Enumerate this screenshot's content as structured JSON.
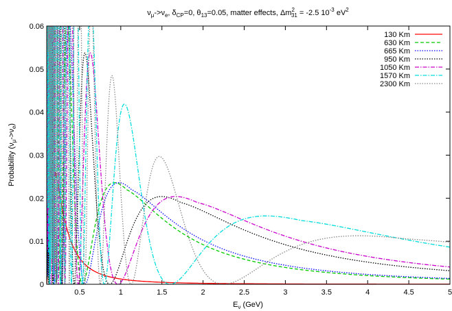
{
  "chart_data": {
    "type": "line",
    "title": {
      "prefix": "ν",
      "sub1": "μ",
      "arrow": "->ν",
      "sub2": "e",
      "p1": ", δ",
      "sub3": "CP",
      "p2": "=0, θ",
      "sub4": "13",
      "p3": "=0.05, matter effects, Δm",
      "sup1": "2",
      "sub5": "31",
      "p4": " = -2.5 10",
      "sup2": "-3",
      "p5": " eV",
      "sup3": "2"
    },
    "xlabel": {
      "main": "E",
      "sub": "ν",
      "unit": " (GeV)"
    },
    "ylabel": {
      "main": "Probability (ν",
      "sub1": "μ",
      "mid": "->ν",
      "sub2": "e",
      "end": ")"
    },
    "xlim": [
      0.1,
      5
    ],
    "ylim": [
      0,
      0.06
    ],
    "x_ticks": [
      "0.5",
      "1",
      "1.5",
      "2",
      "2.5",
      "3",
      "3.5",
      "4",
      "4.5",
      "5"
    ],
    "y_ticks": [
      "0",
      "0.01",
      "0.02",
      "0.03",
      "0.04",
      "0.05",
      "0.06"
    ],
    "grid": false,
    "legend_position": "top-right",
    "series": [
      {
        "name": "130 Km",
        "color": "#ff0000",
        "dash": "solid",
        "baseline_km": 130,
        "first_max_gev": 0.2,
        "points": [
          [
            0.2,
            0.0265
          ],
          [
            0.5,
            0.008
          ],
          [
            1.0,
            0.002
          ],
          [
            2.0,
            0.0005
          ],
          [
            5.0,
            0.0001
          ]
        ]
      },
      {
        "name": "630 Km",
        "color": "#00cc00",
        "dash": "dashed",
        "baseline_km": 630,
        "first_max_gev": 1.07,
        "points": [
          [
            0.55,
            0.0
          ],
          [
            1.07,
            0.022
          ],
          [
            2.0,
            0.014
          ],
          [
            3.0,
            0.008
          ],
          [
            4.0,
            0.005
          ],
          [
            5.0,
            0.0003
          ]
        ]
      },
      {
        "name": "665 Km",
        "color": "#0000ff",
        "dash": "dotted",
        "baseline_km": 665,
        "first_max_gev": 1.13,
        "points": [
          [
            0.58,
            0.0
          ],
          [
            1.13,
            0.022
          ],
          [
            2.0,
            0.0155
          ],
          [
            3.0,
            0.01
          ],
          [
            4.0,
            0.007
          ],
          [
            5.0,
            0.0055
          ]
        ]
      },
      {
        "name": "950 Km",
        "color": "#000000",
        "dash": "dotted",
        "baseline_km": 950,
        "first_max_gev": 1.73,
        "points": [
          [
            0.57,
            0.037
          ],
          [
            0.85,
            0.0
          ],
          [
            1.73,
            0.019
          ],
          [
            3.0,
            0.012
          ],
          [
            4.0,
            0.009
          ],
          [
            5.0,
            0.007
          ]
        ]
      },
      {
        "name": "1050 Km",
        "color": "#cc00cc",
        "dash": "dashdot",
        "baseline_km": 1050,
        "first_max_gev": 1.93,
        "points": [
          [
            0.63,
            0.035
          ],
          [
            0.95,
            0.0
          ],
          [
            1.93,
            0.019
          ],
          [
            3.0,
            0.0145
          ],
          [
            4.0,
            0.011
          ],
          [
            5.0,
            0.009
          ]
        ]
      },
      {
        "name": "1570 Km",
        "color": "#00dddd",
        "dash": "dashdot",
        "baseline_km": 1570,
        "first_max_gev": 3.2,
        "points": [
          [
            0.58,
            0.055
          ],
          [
            0.99,
            0.031
          ],
          [
            1.45,
            0.0
          ],
          [
            3.2,
            0.0148
          ],
          [
            5.0,
            0.0102
          ]
        ]
      },
      {
        "name": "2300 Km",
        "color": "#888888",
        "dash": "dotted",
        "baseline_km": 2300,
        "first_max_gev": 4.5,
        "points": [
          [
            0.87,
            0.046
          ],
          [
            1.45,
            0.0245
          ],
          [
            2.2,
            0.0
          ],
          [
            4.5,
            0.0105
          ],
          [
            5.0,
            0.0104
          ]
        ]
      }
    ]
  }
}
